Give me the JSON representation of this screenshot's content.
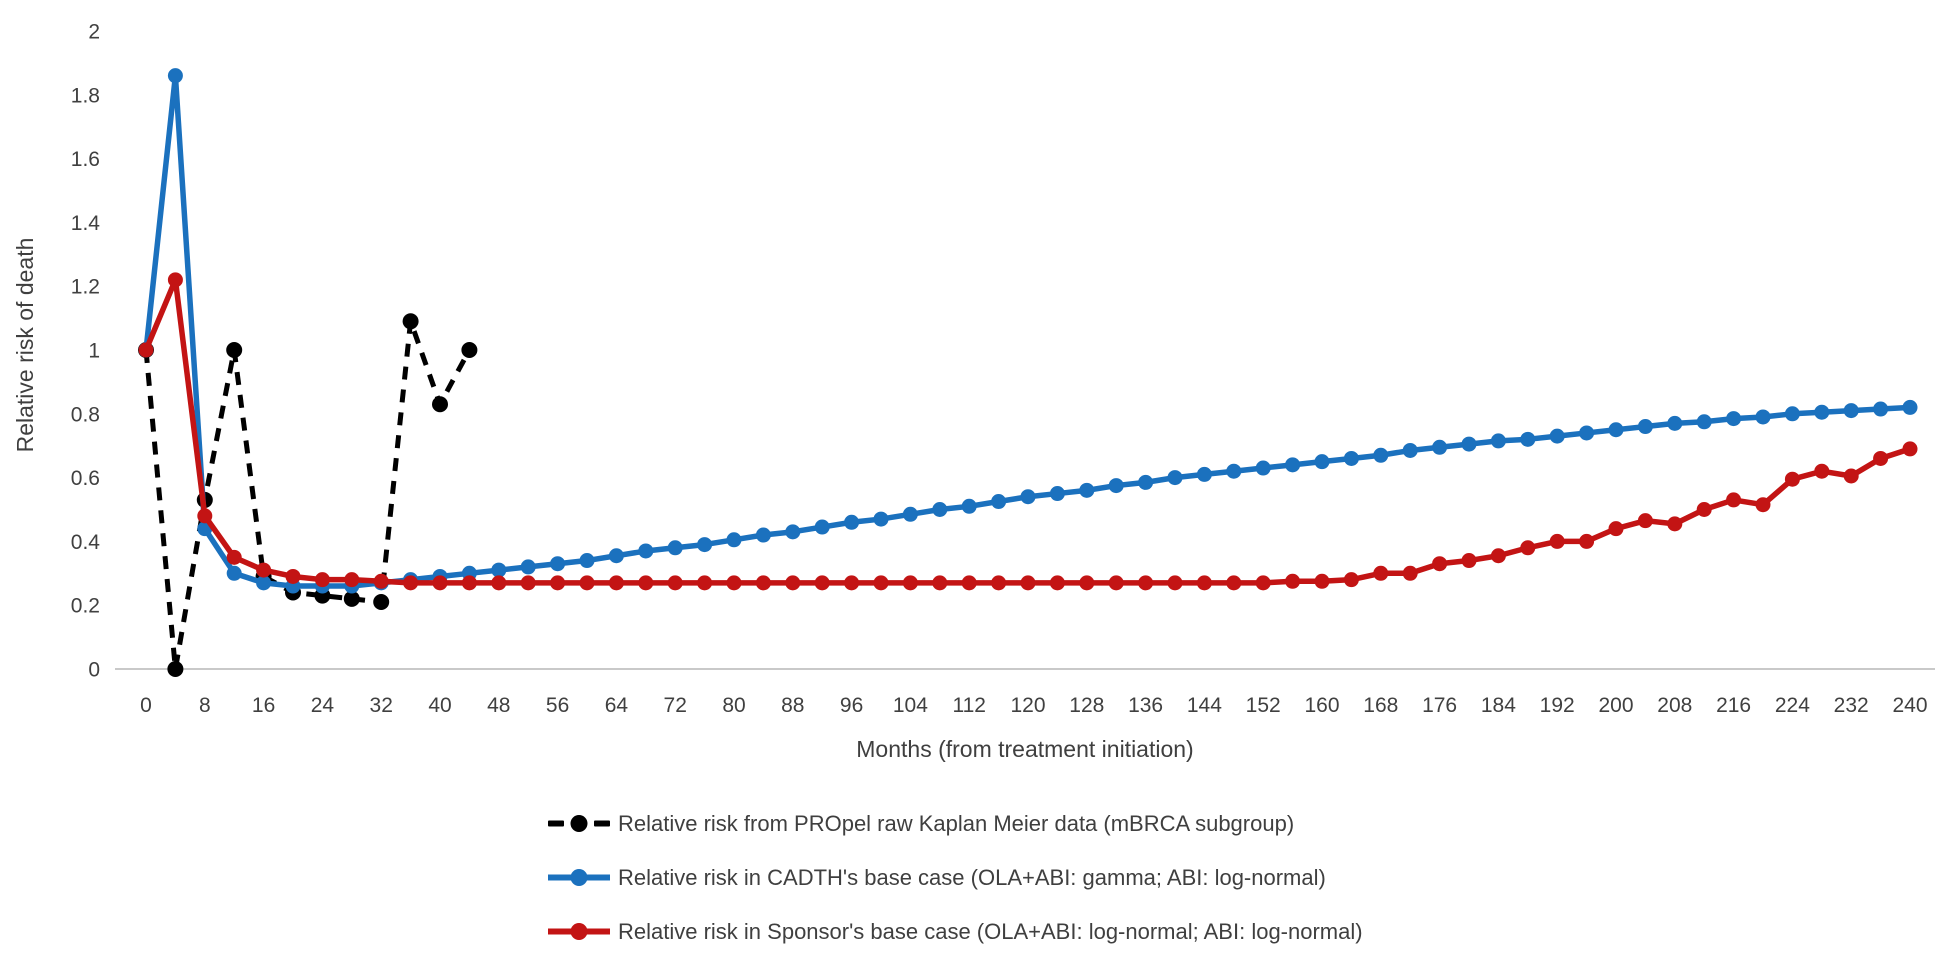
{
  "chart": {
    "y_axis_title": "Relative risk of death",
    "x_axis_title": "Months (from treatment initiation)",
    "y_ticks": [
      "0",
      "0.2",
      "0.4",
      "0.6",
      "0.8",
      "1",
      "1.2",
      "1.4",
      "1.6",
      "1.8",
      "2"
    ],
    "x_ticks": [
      "0",
      "8",
      "16",
      "24",
      "32",
      "40",
      "48",
      "56",
      "64",
      "72",
      "80",
      "88",
      "96",
      "104",
      "112",
      "120",
      "128",
      "136",
      "144",
      "152",
      "160",
      "168",
      "176",
      "184",
      "192",
      "200",
      "208",
      "216",
      "224",
      "232",
      "240"
    ],
    "colors": {
      "axis_line": "#c9c9c9",
      "tick_text": "#404040",
      "legend_text": "#3f3f3f"
    }
  },
  "chart_data": {
    "type": "line",
    "title": "",
    "xlabel": "Months (from treatment initiation)",
    "ylabel": "Relative risk of death",
    "xlim": [
      0,
      240
    ],
    "ylim": [
      0,
      2
    ],
    "grid": false,
    "legend_position": "bottom-left",
    "series": [
      {
        "name": "Relative risk from PROpel raw Kaplan Meier data (mBRCA subgroup)",
        "color": "#000000",
        "style": "dashed",
        "marker": "circle",
        "x": [
          0,
          4,
          8,
          12,
          16,
          20,
          24,
          28,
          32,
          36,
          40,
          44
        ],
        "values": [
          1.0,
          0.0,
          0.53,
          1.0,
          0.29,
          0.24,
          0.23,
          0.22,
          0.21,
          1.09,
          0.83,
          1.0
        ]
      },
      {
        "name": "Relative risk in CADTH's base case (OLA+ABI: gamma; ABI: log-normal)",
        "color": "#1b71be",
        "style": "solid",
        "marker": "circle",
        "x": [
          0,
          4,
          8,
          12,
          16,
          20,
          24,
          28,
          32,
          36,
          40,
          44,
          48,
          52,
          56,
          60,
          64,
          68,
          72,
          76,
          80,
          84,
          88,
          92,
          96,
          100,
          104,
          108,
          112,
          116,
          120,
          124,
          128,
          132,
          136,
          140,
          144,
          148,
          152,
          156,
          160,
          164,
          168,
          172,
          176,
          180,
          184,
          188,
          192,
          196,
          200,
          204,
          208,
          212,
          216,
          220,
          224,
          228,
          232,
          236,
          240
        ],
        "values": [
          1.0,
          1.86,
          0.44,
          0.3,
          0.27,
          0.26,
          0.26,
          0.26,
          0.27,
          0.28,
          0.29,
          0.3,
          0.31,
          0.32,
          0.33,
          0.34,
          0.355,
          0.37,
          0.38,
          0.39,
          0.405,
          0.42,
          0.43,
          0.445,
          0.46,
          0.47,
          0.485,
          0.5,
          0.51,
          0.525,
          0.54,
          0.55,
          0.56,
          0.575,
          0.585,
          0.6,
          0.61,
          0.62,
          0.63,
          0.64,
          0.65,
          0.66,
          0.67,
          0.685,
          0.695,
          0.705,
          0.715,
          0.72,
          0.73,
          0.74,
          0.75,
          0.76,
          0.77,
          0.775,
          0.785,
          0.79,
          0.8,
          0.805,
          0.81,
          0.815,
          0.82
        ]
      },
      {
        "name": "Relative risk in Sponsor's base case (OLA+ABI: log-normal; ABI: log-normal)",
        "color": "#c31414",
        "style": "solid",
        "marker": "circle",
        "x": [
          0,
          4,
          8,
          12,
          16,
          20,
          24,
          28,
          32,
          36,
          40,
          44,
          48,
          52,
          56,
          60,
          64,
          68,
          72,
          76,
          80,
          84,
          88,
          92,
          96,
          100,
          104,
          108,
          112,
          116,
          120,
          124,
          128,
          132,
          136,
          140,
          144,
          148,
          152,
          156,
          160,
          164,
          168,
          172,
          176,
          180,
          184,
          188,
          192,
          196,
          200,
          204,
          208,
          212,
          216,
          220,
          224,
          228,
          232,
          236,
          240
        ],
        "values": [
          1.0,
          1.22,
          0.48,
          0.35,
          0.31,
          0.29,
          0.28,
          0.28,
          0.275,
          0.27,
          0.27,
          0.27,
          0.27,
          0.27,
          0.27,
          0.27,
          0.27,
          0.27,
          0.27,
          0.27,
          0.27,
          0.27,
          0.27,
          0.27,
          0.27,
          0.27,
          0.27,
          0.27,
          0.27,
          0.27,
          0.27,
          0.27,
          0.27,
          0.27,
          0.27,
          0.27,
          0.27,
          0.27,
          0.27,
          0.275,
          0.275,
          0.28,
          0.3,
          0.3,
          0.33,
          0.34,
          0.355,
          0.38,
          0.4,
          0.4,
          0.44,
          0.465,
          0.455,
          0.5,
          0.53,
          0.515,
          0.595,
          0.62,
          0.605,
          0.66,
          0.69
        ]
      }
    ]
  }
}
